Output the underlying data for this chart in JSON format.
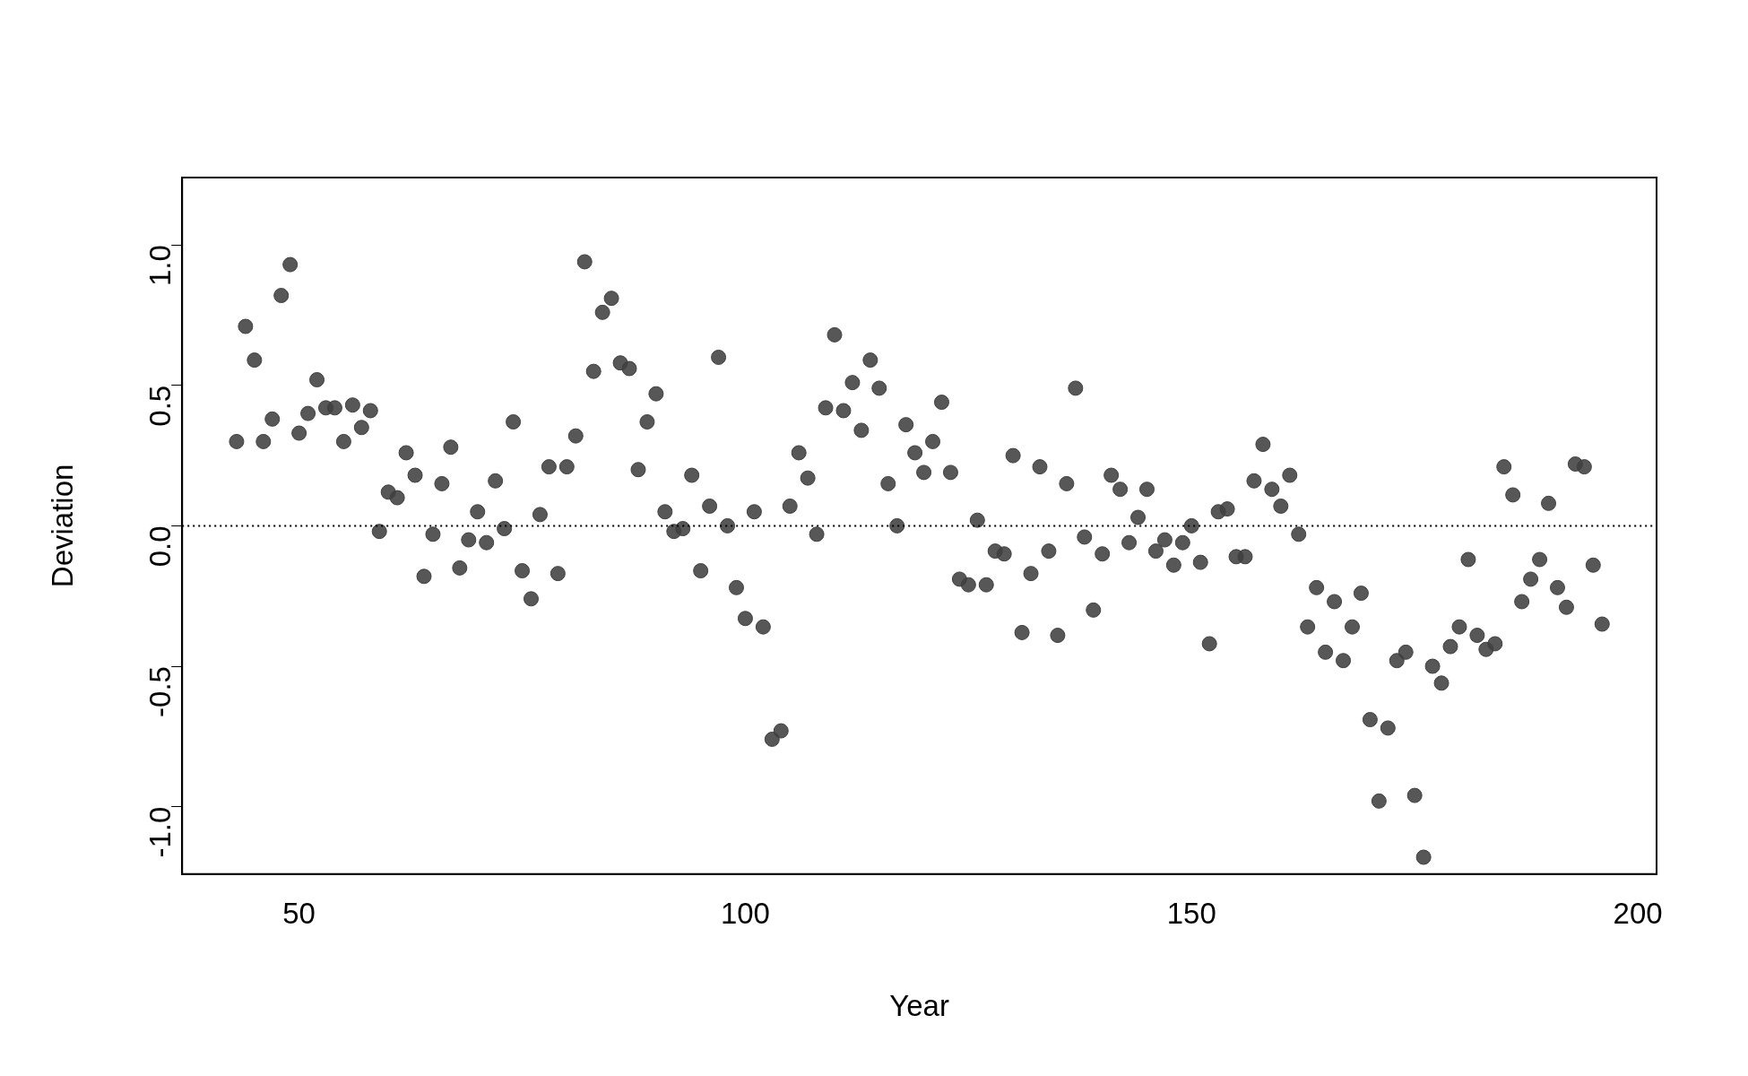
{
  "chart_data": {
    "type": "scatter",
    "xlabel": "Year",
    "ylabel": "Deviation",
    "x": [
      43,
      44,
      45,
      46,
      47,
      48,
      49,
      50,
      51,
      52,
      53,
      54,
      55,
      56,
      57,
      58,
      59,
      60,
      61,
      62,
      63,
      64,
      65,
      66,
      67,
      68,
      69,
      70,
      71,
      72,
      73,
      74,
      75,
      76,
      77,
      78,
      79,
      80,
      81,
      82,
      83,
      84,
      85,
      86,
      87,
      88,
      89,
      90,
      91,
      92,
      93,
      94,
      95,
      96,
      97,
      98,
      99,
      100,
      101,
      102,
      103,
      104,
      105,
      106,
      107,
      108,
      109,
      110,
      111,
      112,
      113,
      114,
      115,
      116,
      117,
      118,
      119,
      120,
      121,
      122,
      123,
      124,
      125,
      126,
      127,
      128,
      129,
      130,
      131,
      132,
      133,
      134,
      135,
      136,
      137,
      138,
      139,
      140,
      141,
      142,
      143,
      144,
      145,
      146,
      147,
      148,
      149,
      150,
      151,
      152,
      153,
      154,
      155,
      156,
      157,
      158,
      159,
      160,
      161,
      162,
      163,
      164,
      165,
      166,
      167,
      168,
      169,
      170,
      171,
      172,
      173,
      174,
      175,
      176,
      177,
      178,
      179,
      180,
      181,
      182,
      183,
      184,
      185,
      186,
      187,
      188,
      189,
      190,
      191,
      192,
      193,
      194,
      195,
      196
    ],
    "series": [
      {
        "color": "#404040",
        "values": [
          0.3,
          0.71,
          0.59,
          0.3,
          0.38,
          0.82,
          0.93,
          0.33,
          0.4,
          0.52,
          0.42,
          0.42,
          0.3,
          0.43,
          0.35,
          0.41,
          -0.02,
          0.12,
          0.1,
          0.26,
          0.18,
          -0.18,
          -0.03,
          0.15,
          0.28,
          -0.15,
          -0.05,
          0.05,
          -0.06,
          0.16,
          -0.01,
          0.37,
          -0.16,
          -0.26,
          0.04,
          0.21,
          -0.17,
          0.21,
          0.32,
          0.94,
          0.55,
          0.76,
          0.81,
          0.58,
          0.56,
          0.2,
          0.37,
          0.47,
          0.05,
          -0.02,
          -0.01,
          0.18,
          -0.16,
          0.07,
          0.6,
          0.0,
          -0.22,
          -0.33,
          0.05,
          -0.36,
          -0.76,
          -0.73,
          0.07,
          0.26,
          0.17,
          -0.03,
          0.42,
          0.68,
          0.41,
          0.51,
          0.34,
          0.59,
          0.49,
          0.15,
          0.0,
          0.36,
          0.26,
          0.19,
          0.3,
          0.44,
          0.19,
          -0.19,
          -0.21,
          0.02,
          -0.21,
          -0.09,
          -0.1,
          0.25,
          -0.38,
          -0.17,
          0.21,
          -0.09,
          -0.39,
          0.15,
          0.49,
          -0.04,
          -0.3,
          -0.1,
          0.18,
          0.13,
          -0.06,
          0.03,
          0.13,
          -0.09,
          -0.05,
          -0.14,
          -0.06,
          0.0,
          -0.13,
          -0.42,
          0.05,
          0.06,
          -0.11,
          -0.11,
          0.16,
          0.29,
          0.13,
          0.07,
          0.18,
          -0.03,
          -0.36,
          -0.22,
          -0.45,
          -0.27,
          -0.48,
          -0.36,
          -0.24,
          -0.69,
          -0.98,
          -0.72,
          -0.48,
          -0.45,
          -0.96,
          -1.18,
          -0.5,
          -0.56,
          -0.43,
          -0.36,
          -0.12,
          -0.39,
          -0.44,
          -0.42,
          0.21,
          0.11,
          -0.27,
          -0.19,
          -0.12,
          0.08,
          -0.22,
          -0.29,
          0.22,
          0.21,
          -0.14,
          -0.35
        ]
      }
    ],
    "xlim": [
      36.9,
      202.1
    ],
    "xticks": [
      50,
      100,
      150,
      200
    ],
    "ylim": [
      -1.24,
      1.24
    ],
    "yticks": [
      {
        "value": -1,
        "label": "-1.0"
      },
      {
        "value": -0.5,
        "label": "-0.5"
      },
      {
        "value": 0,
        "label": "0.0"
      },
      {
        "value": 0.5,
        "label": "0.5"
      },
      {
        "value": 1,
        "label": "1.0"
      }
    ],
    "ref_lines": [
      {
        "axis": "y",
        "value": 0,
        "color": "#000000",
        "line_style": "dotted"
      }
    ],
    "grid": false,
    "legend": false,
    "marker": "circle"
  }
}
